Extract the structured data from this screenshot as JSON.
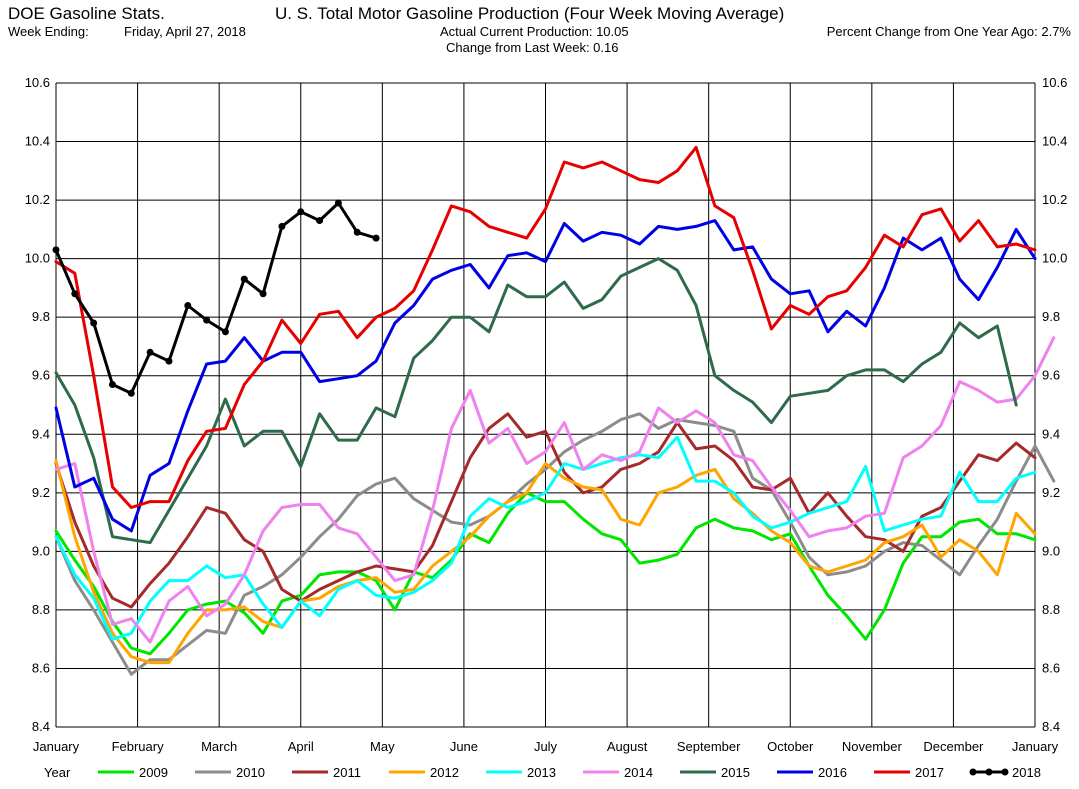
{
  "header": {
    "app_title": "DOE Gasoline Stats.",
    "week_label": "Week Ending:",
    "week_value": "Friday, April 27, 2018",
    "chart_title": "U. S. Total Motor Gasoline Production (Four Week Moving Average)",
    "current_production": "Actual Current Production: 10.05",
    "change_last_week": "Change from Last Week: 0.16",
    "percent_change": "Percent Change from One Year Ago: 2.7%"
  },
  "chart_data": {
    "type": "line",
    "title": "U. S. Total Motor Gasoline Production (Four Week Moving Average)",
    "xlabel": "",
    "ylabel": "",
    "ylim": [
      8.4,
      10.6
    ],
    "y_ticks": [
      "8.4",
      "8.6",
      "8.8",
      "9.0",
      "9.2",
      "9.4",
      "9.6",
      "9.8",
      "10.0",
      "10.2",
      "10.4",
      "10.6"
    ],
    "x_ticks": [
      "January",
      "February",
      "March",
      "April",
      "May",
      "June",
      "July",
      "August",
      "September",
      "October",
      "November",
      "December",
      "January"
    ],
    "x_unit": "week of year",
    "grid": true,
    "legend_title": "Year",
    "legend_position": "bottom",
    "series": [
      {
        "name": "2009",
        "color": "#00e600",
        "values": [
          9.07,
          8.97,
          8.88,
          8.76,
          8.67,
          8.65,
          8.72,
          8.8,
          8.82,
          8.83,
          8.79,
          8.72,
          8.83,
          8.85,
          8.92,
          8.93,
          8.93,
          8.9,
          8.8,
          8.93,
          8.91,
          8.97,
          9.06,
          9.03,
          9.13,
          9.2,
          9.17,
          9.17,
          9.11,
          9.06,
          9.04,
          8.96,
          8.97,
          8.99,
          9.08,
          9.11,
          9.08,
          9.07,
          9.04,
          9.06,
          8.95,
          8.85,
          8.78,
          8.7,
          8.8,
          8.96,
          9.05,
          9.05,
          9.1,
          9.11,
          9.06,
          9.06,
          9.04
        ]
      },
      {
        "name": "2010",
        "color": "#8c8c8c",
        "values": [
          9.05,
          8.9,
          8.8,
          8.69,
          8.58,
          8.63,
          8.63,
          8.68,
          8.73,
          8.72,
          8.85,
          8.88,
          8.92,
          8.98,
          9.05,
          9.11,
          9.19,
          9.23,
          9.25,
          9.18,
          9.14,
          9.1,
          9.09,
          9.12,
          9.17,
          9.23,
          9.28,
          9.34,
          9.38,
          9.41,
          9.45,
          9.47,
          9.42,
          9.45,
          9.44,
          9.43,
          9.41,
          9.25,
          9.21,
          9.1,
          8.98,
          8.92,
          8.93,
          8.95,
          9.0,
          9.03,
          9.02,
          8.97,
          8.92,
          9.02,
          9.11,
          9.24,
          9.36,
          9.24
        ]
      },
      {
        "name": "2011",
        "color": "#a52a2a",
        "values": [
          9.3,
          9.1,
          8.95,
          8.84,
          8.81,
          8.89,
          8.96,
          9.05,
          9.15,
          9.13,
          9.04,
          9.0,
          8.87,
          8.83,
          8.87,
          8.9,
          8.93,
          8.95,
          8.94,
          8.93,
          9.02,
          9.17,
          9.32,
          9.42,
          9.47,
          9.39,
          9.41,
          9.27,
          9.2,
          9.22,
          9.28,
          9.3,
          9.34,
          9.44,
          9.35,
          9.36,
          9.31,
          9.22,
          9.21,
          9.25,
          9.13,
          9.2,
          9.12,
          9.05,
          9.04,
          9.0,
          9.12,
          9.15,
          9.24,
          9.33,
          9.31,
          9.37,
          9.32
        ]
      },
      {
        "name": "2012",
        "color": "#ffa500",
        "values": [
          9.31,
          9.05,
          8.86,
          8.72,
          8.64,
          8.62,
          8.62,
          8.72,
          8.8,
          8.8,
          8.81,
          8.76,
          8.74,
          8.83,
          8.84,
          8.88,
          8.9,
          8.91,
          8.86,
          8.87,
          8.95,
          9.0,
          9.05,
          9.12,
          9.17,
          9.2,
          9.3,
          9.25,
          9.22,
          9.21,
          9.11,
          9.09,
          9.2,
          9.22,
          9.26,
          9.28,
          9.18,
          9.13,
          9.07,
          9.03,
          8.95,
          8.93,
          8.95,
          8.97,
          9.03,
          9.05,
          9.09,
          8.98,
          9.04,
          9.0,
          8.92,
          9.13,
          9.06
        ]
      },
      {
        "name": "2013",
        "color": "#00ffff",
        "values": [
          9.05,
          8.92,
          8.84,
          8.7,
          8.72,
          8.83,
          8.9,
          8.9,
          8.95,
          8.91,
          8.92,
          8.82,
          8.74,
          8.83,
          8.78,
          8.87,
          8.9,
          8.85,
          8.84,
          8.86,
          8.9,
          8.96,
          9.12,
          9.18,
          9.15,
          9.17,
          9.2,
          9.3,
          9.28,
          9.3,
          9.32,
          9.33,
          9.32,
          9.39,
          9.24,
          9.24,
          9.2,
          9.12,
          9.08,
          9.1,
          9.13,
          9.15,
          9.17,
          9.29,
          9.07,
          9.09,
          9.11,
          9.12,
          9.27,
          9.17,
          9.17,
          9.25,
          9.27
        ]
      },
      {
        "name": "2014",
        "color": "#ee82ee",
        "values": [
          9.28,
          9.3,
          9.0,
          8.75,
          8.77,
          8.69,
          8.83,
          8.88,
          8.78,
          8.82,
          8.92,
          9.07,
          9.15,
          9.16,
          9.16,
          9.08,
          9.06,
          8.98,
          8.9,
          8.92,
          9.14,
          9.42,
          9.55,
          9.37,
          9.42,
          9.3,
          9.34,
          9.44,
          9.28,
          9.33,
          9.31,
          9.34,
          9.49,
          9.44,
          9.48,
          9.44,
          9.33,
          9.31,
          9.22,
          9.14,
          9.05,
          9.07,
          9.08,
          9.12,
          9.13,
          9.32,
          9.36,
          9.43,
          9.58,
          9.55,
          9.51,
          9.52,
          9.6,
          9.73
        ]
      },
      {
        "name": "2015",
        "color": "#2e6b4b",
        "values": [
          9.61,
          9.5,
          9.32,
          9.05,
          9.04,
          9.03,
          9.14,
          9.25,
          9.36,
          9.52,
          9.36,
          9.41,
          9.41,
          9.29,
          9.47,
          9.38,
          9.38,
          9.49,
          9.46,
          9.66,
          9.72,
          9.8,
          9.8,
          9.75,
          9.91,
          9.87,
          9.87,
          9.92,
          9.83,
          9.86,
          9.94,
          9.97,
          10.0,
          9.96,
          9.84,
          9.6,
          9.55,
          9.51,
          9.44,
          9.53,
          9.54,
          9.55,
          9.6,
          9.62,
          9.62,
          9.58,
          9.64,
          9.68,
          9.78,
          9.73,
          9.77,
          9.5
        ]
      },
      {
        "name": "2016",
        "color": "#0000e6",
        "values": [
          9.49,
          9.22,
          9.25,
          9.11,
          9.07,
          9.26,
          9.3,
          9.48,
          9.64,
          9.65,
          9.73,
          9.65,
          9.68,
          9.68,
          9.58,
          9.59,
          9.6,
          9.65,
          9.78,
          9.84,
          9.93,
          9.96,
          9.98,
          9.9,
          10.01,
          10.02,
          9.99,
          10.12,
          10.06,
          10.09,
          10.08,
          10.05,
          10.11,
          10.1,
          10.11,
          10.13,
          10.03,
          10.04,
          9.93,
          9.88,
          9.89,
          9.75,
          9.82,
          9.77,
          9.9,
          10.07,
          10.03,
          10.07,
          9.93,
          9.86,
          9.97,
          10.1,
          10.0
        ]
      },
      {
        "name": "2017",
        "color": "#e60000",
        "values": [
          9.99,
          9.95,
          9.6,
          9.22,
          9.15,
          9.17,
          9.17,
          9.31,
          9.41,
          9.42,
          9.57,
          9.65,
          9.79,
          9.71,
          9.81,
          9.82,
          9.73,
          9.8,
          9.83,
          9.89,
          10.03,
          10.18,
          10.16,
          10.11,
          10.09,
          10.07,
          10.17,
          10.33,
          10.31,
          10.33,
          10.3,
          10.27,
          10.26,
          10.3,
          10.38,
          10.18,
          10.14,
          9.96,
          9.76,
          9.84,
          9.81,
          9.87,
          9.89,
          9.97,
          10.08,
          10.04,
          10.15,
          10.17,
          10.06,
          10.13,
          10.04,
          10.05,
          10.03
        ]
      },
      {
        "name": "2018",
        "color": "#000000",
        "marker": "circle",
        "values": [
          10.03,
          9.88,
          9.78,
          9.57,
          9.54,
          9.68,
          9.65,
          9.84,
          9.79,
          9.75,
          9.93,
          9.88,
          10.11,
          10.16,
          10.13,
          10.19,
          10.09,
          10.07
        ]
      }
    ]
  }
}
